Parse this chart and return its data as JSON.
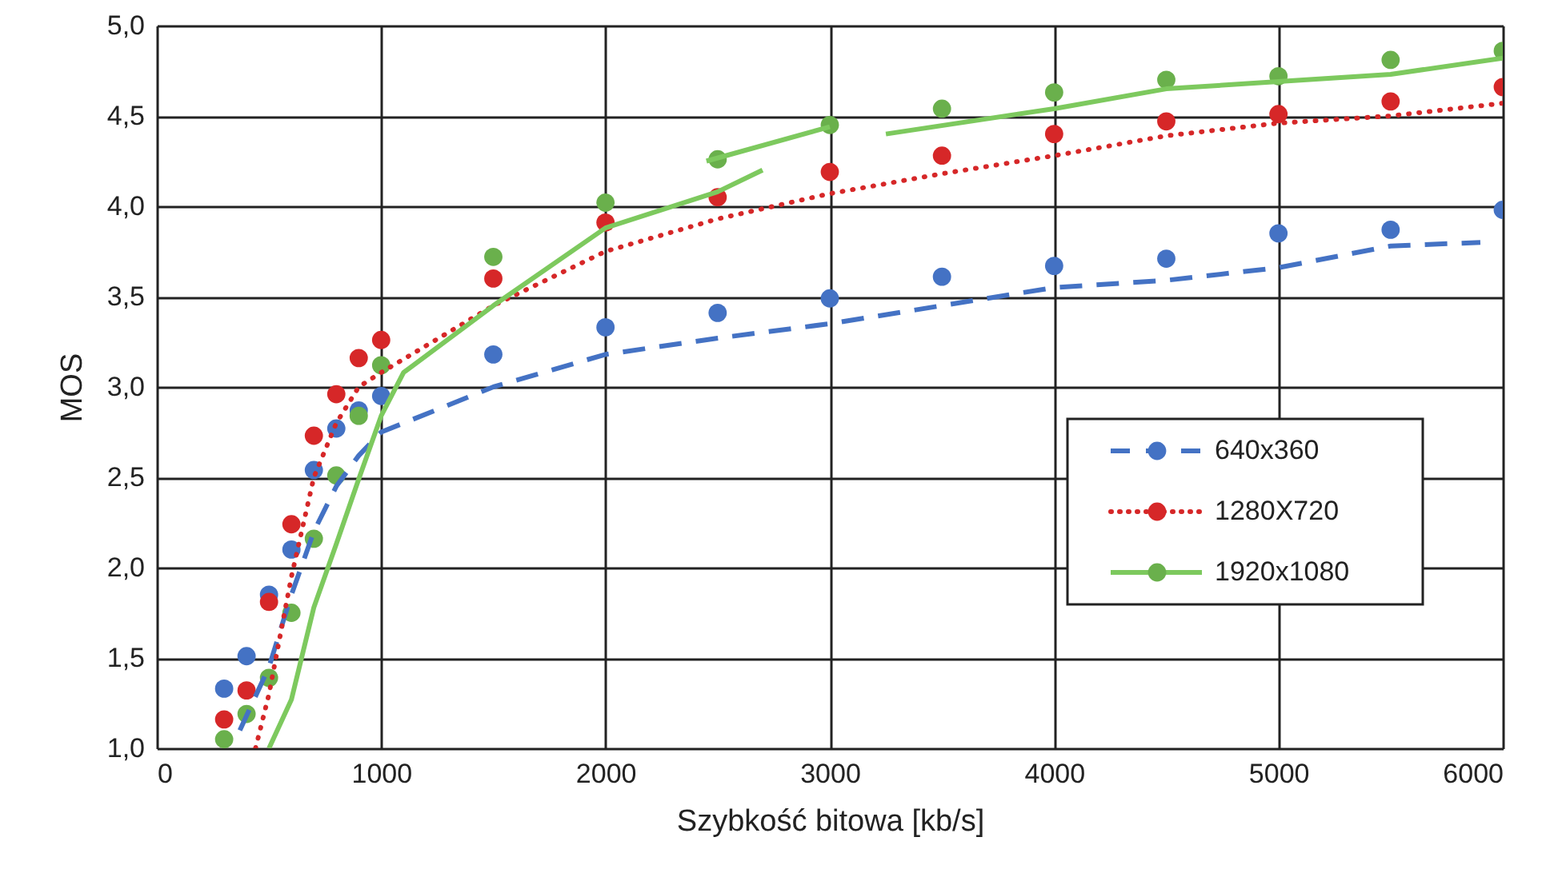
{
  "chart_data": {
    "type": "scatter",
    "xlabel": "Szybkość bitowa [kb/s]",
    "ylabel": "MOS",
    "xlim": [
      0,
      6000
    ],
    "xticks": [
      0,
      1000,
      2000,
      3000,
      4000,
      5000,
      6000
    ],
    "ylim": [
      1,
      5
    ],
    "yticks": [
      {
        "value": 1,
        "label": "1,0"
      },
      {
        "value": 1.5,
        "label": "1,5"
      },
      {
        "value": 2,
        "label": "2,0"
      },
      {
        "value": 2.5,
        "label": "2,5"
      },
      {
        "value": 3,
        "label": "3,0"
      },
      {
        "value": 3.5,
        "label": "3,5"
      },
      {
        "value": 4,
        "label": "4,0"
      },
      {
        "value": 4.5,
        "label": "4,5"
      },
      {
        "value": 5,
        "label": "5,0"
      }
    ],
    "grid": true,
    "legend": "right",
    "x": [
      300,
      400,
      500,
      600,
      700,
      800,
      900,
      1000,
      1500,
      2000,
      2500,
      3000,
      3500,
      4000,
      4500,
      5000,
      5500,
      6000
    ],
    "series": [
      {
        "name": "640x360",
        "marker": "circle",
        "color": "#4472c4",
        "values": [
          1.33,
          1.51,
          1.85,
          2.1,
          2.54,
          2.77,
          2.87,
          2.95,
          3.18,
          3.33,
          3.41,
          3.49,
          3.61,
          3.67,
          3.71,
          3.85,
          3.87,
          3.98
        ]
      },
      {
        "name": "1280X720",
        "marker": "circle",
        "color": "#d62728",
        "values": [
          1.16,
          1.32,
          1.81,
          2.24,
          2.73,
          2.96,
          3.16,
          3.26,
          3.6,
          3.91,
          4.05,
          4.19,
          4.28,
          4.4,
          4.47,
          4.51,
          4.58,
          4.66
        ]
      },
      {
        "name": "1920x1080",
        "marker": "circle",
        "color": "#6ab04c",
        "values": [
          1.05,
          1.19,
          1.39,
          1.75,
          2.16,
          2.51,
          2.84,
          3.12,
          3.72,
          4.02,
          4.26,
          4.45,
          4.54,
          4.63,
          4.7,
          4.72,
          4.81,
          4.86
        ]
      },
      {
        "type": "line",
        "marker": "none",
        "line_style": "dashed",
        "color": "#4472c4",
        "x": [
          370,
          500,
          600,
          700,
          800,
          900,
          1000,
          1500,
          2000,
          2500,
          3000,
          3500,
          4000,
          4500,
          5000,
          5500,
          5900
        ],
        "values": [
          1.1,
          1.45,
          1.85,
          2.2,
          2.45,
          2.62,
          2.75,
          3.0,
          3.18,
          3.27,
          3.35,
          3.45,
          3.55,
          3.59,
          3.66,
          3.78,
          3.8
        ]
      },
      {
        "type": "line",
        "marker": "none",
        "line_style": "dotted",
        "color": "#d62728",
        "x": [
          440,
          500,
          600,
          700,
          800,
          900,
          1000,
          1500,
          2000,
          2500,
          3000,
          3500,
          4000,
          4500,
          5000,
          5500,
          6000
        ],
        "values": [
          1.0,
          1.3,
          1.95,
          2.5,
          2.8,
          3.0,
          3.08,
          3.45,
          3.75,
          3.93,
          4.07,
          4.18,
          4.28,
          4.39,
          4.46,
          4.5,
          4.57
        ]
      },
      {
        "type": "line",
        "line_style": "solid",
        "color": "#7dc95e",
        "marker": "none",
        "x": [
          500,
          600,
          700,
          800,
          900,
          1000,
          1100,
          1500,
          2000,
          2500,
          2700
        ],
        "values": [
          1.0,
          1.27,
          1.78,
          2.13,
          2.49,
          2.84,
          3.08,
          3.45,
          3.88,
          4.08,
          4.2
        ]
      },
      {
        "type": "line",
        "line_style": "solid",
        "color": "#7dc95e",
        "marker": "none",
        "x": [
          2450,
          3000
        ],
        "values": [
          4.25,
          4.44
        ]
      },
      {
        "type": "line",
        "line_style": "solid",
        "color": "#7dc95e",
        "marker": "none",
        "x": [
          3250,
          4000,
          4500,
          5000,
          5500,
          6000
        ],
        "values": [
          4.4,
          4.54,
          4.65,
          4.69,
          4.73,
          4.82
        ]
      }
    ]
  }
}
